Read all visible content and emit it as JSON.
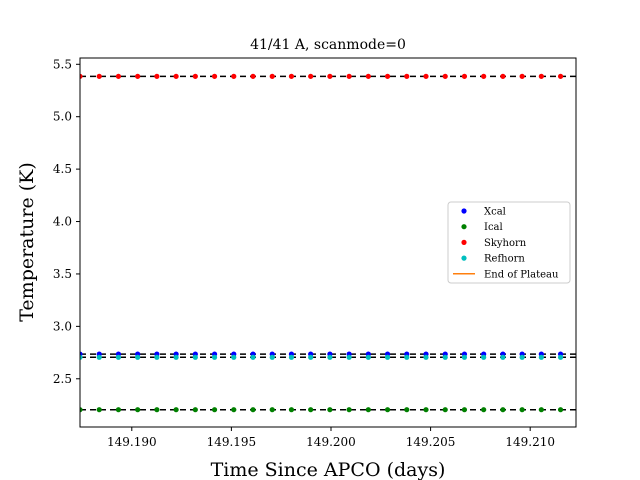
{
  "chart_data": {
    "type": "scatter",
    "title": "41/41 A, scanmode=0",
    "xlabel": "Time Since APCO (days)",
    "ylabel": "Temperature (K)",
    "xlim": [
      149.1874,
      149.2123
    ],
    "ylim": [
      2.04,
      5.56
    ],
    "x_ticks": [
      "149.190",
      "149.195",
      "149.200",
      "149.205",
      "149.210"
    ],
    "x_tick_values": [
      149.19,
      149.195,
      149.2,
      149.205,
      149.21
    ],
    "y_ticks": [
      "2.5",
      "3.0",
      "3.5",
      "4.0",
      "4.5",
      "5.0",
      "5.5"
    ],
    "y_tick_values": [
      2.5,
      3.0,
      3.5,
      4.0,
      4.5,
      5.0,
      5.5
    ],
    "x_start": 149.1874,
    "x_step": 0.000965,
    "n_points": 27,
    "series": [
      {
        "name": "Xcal",
        "color": "#0000ff",
        "y": 2.735,
        "marker": "dot"
      },
      {
        "name": "Ical",
        "color": "#008000",
        "y": 2.205,
        "marker": "dot"
      },
      {
        "name": "Skyhorn",
        "color": "#ff0000",
        "y": 5.385,
        "marker": "dot"
      },
      {
        "name": "Refhorn",
        "color": "#00bfbf",
        "y": 2.705,
        "marker": "dot"
      },
      {
        "name": "End of Plateau",
        "color": "#ff7f0e",
        "marker": "line"
      }
    ],
    "legend_position": "center-right",
    "grid": false
  }
}
